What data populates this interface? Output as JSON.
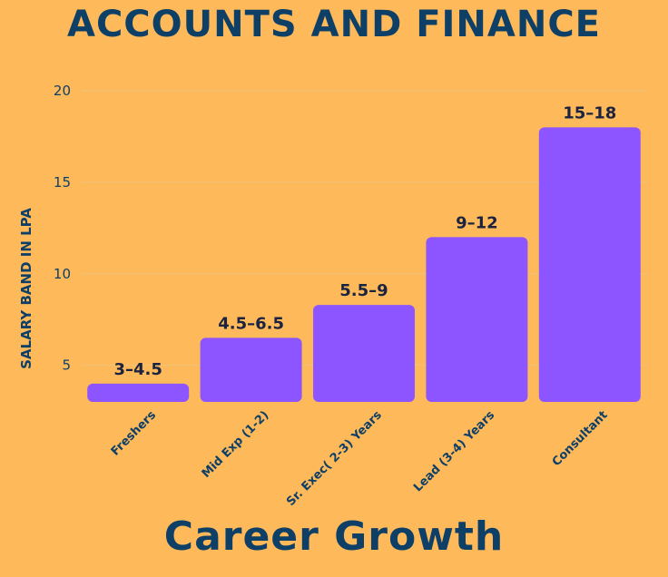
{
  "header": {
    "title": "ACCOUNTS AND FINANCE"
  },
  "footer": {
    "subtitle": "Career Growth"
  },
  "colors": {
    "background": "#FDB95A",
    "bar": "#8C55FF",
    "text": "#0E3F66",
    "grid": "#F3C37A"
  },
  "chart_data": {
    "type": "bar",
    "title": "ACCOUNTS AND FINANCE",
    "ylabel": "SALARY BAND IN LPA",
    "xlabel": "",
    "categories": [
      "Freshers",
      "Mid Exp (1-2)",
      "Sr. Exec( 2-3) Years",
      "Lead (3-4) Years",
      "Consultant"
    ],
    "values": [
      4,
      6.5,
      8.3,
      12,
      18
    ],
    "data_labels": [
      "3–4.5",
      "4.5–6.5",
      "5.5–9",
      "9–12",
      "15–18"
    ],
    "yticks": [
      5,
      10,
      15,
      20
    ],
    "ylim": [
      3,
      20
    ],
    "grid": true,
    "legend": "none"
  }
}
